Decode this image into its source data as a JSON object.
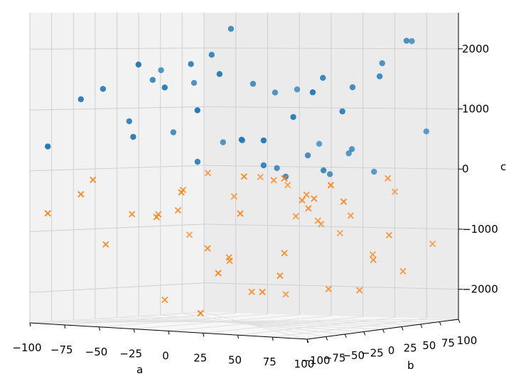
{
  "chart_data": {
    "type": "scatter",
    "projection": "3d",
    "title": "",
    "xlabel": "a",
    "ylabel": "b",
    "zlabel": "c",
    "xlim": [
      -100,
      100
    ],
    "ylim": [
      -100,
      100
    ],
    "zlim": [
      -2500,
      2600
    ],
    "x_ticks": [
      "−100",
      "−75",
      "−50",
      "−25",
      "0",
      "25",
      "50",
      "75",
      "100"
    ],
    "y_ticks": [
      "−100",
      "−75",
      "−50",
      "−25",
      "0",
      "25",
      "50",
      "75",
      "100"
    ],
    "z_ticks": [
      "−2000",
      "−1000",
      "0",
      "1000",
      "2000"
    ],
    "grid": true,
    "legend": "none",
    "series": [
      {
        "marker": "circle",
        "color": "#1f77b4",
        "x": [
          -98,
          -85,
          -80,
          -72,
          -66,
          -62,
          -58,
          -48,
          -45,
          -38,
          -30,
          -22,
          -18,
          -15,
          -10,
          -5,
          0,
          5,
          10,
          15,
          20,
          25,
          30,
          35,
          40,
          45,
          50,
          55,
          60,
          65,
          70,
          75,
          80,
          85,
          90,
          95,
          98,
          -90,
          -50,
          -20,
          10,
          40,
          60,
          85
        ],
        "y": [
          -80,
          -60,
          -40,
          -20,
          0,
          20,
          40,
          60,
          80,
          -70,
          -50,
          -30,
          -10,
          10,
          30,
          50,
          70,
          90,
          -80,
          -60,
          -40,
          -20,
          0,
          20,
          40,
          60,
          80,
          -75,
          -45,
          -15,
          15,
          45,
          75,
          -65,
          -35,
          5,
          35,
          55,
          -55,
          -25,
          25,
          65,
          -5,
          85
        ],
        "z": [
          400,
          1180,
          1350,
          820,
          1500,
          640,
          1450,
          480,
          510,
          1760,
          1390,
          1770,
          1920,
          2340,
          1450,
          1310,
          1360,
          480,
          1040,
          1620,
          570,
          160,
          -20,
          320,
          20,
          420,
          60,
          580,
          950,
          1570,
          1420,
          1800,
          2150,
          1350,
          1050,
          1600,
          2160,
          1650,
          580,
          190,
          100,
          350,
          100,
          720
        ]
      },
      {
        "marker": "x",
        "color": "#ff7f0e",
        "x": [
          -98,
          -85,
          -78,
          -70,
          -62,
          -55,
          -48,
          -40,
          -32,
          -25,
          -18,
          -10,
          -5,
          0,
          5,
          10,
          15,
          20,
          25,
          30,
          35,
          40,
          45,
          50,
          55,
          60,
          65,
          70,
          75,
          80,
          85,
          90,
          95,
          98,
          -90,
          -60,
          -30,
          0,
          30,
          60,
          90,
          -75,
          -45,
          -15,
          15,
          45,
          75,
          20,
          50,
          80
        ],
        "y": [
          -80,
          -60,
          -40,
          -20,
          0,
          20,
          40,
          60,
          80,
          -70,
          -50,
          -30,
          -10,
          10,
          30,
          50,
          70,
          90,
          -80,
          -60,
          -40,
          -20,
          0,
          20,
          40,
          60,
          80,
          -75,
          -45,
          -15,
          15,
          45,
          75,
          -65,
          -35,
          5,
          35,
          55,
          -55,
          -25,
          25,
          65,
          -5,
          85,
          -85,
          -35,
          15,
          65,
          -15,
          45
        ],
        "z": [
          -700,
          -380,
          -1200,
          -700,
          -700,
          -300,
          -20,
          -400,
          -80,
          -700,
          -300,
          -1200,
          -1400,
          -1900,
          -100,
          -680,
          -750,
          -950,
          -1550,
          -600,
          -1850,
          -1230,
          -300,
          -1800,
          -630,
          -1250,
          -250,
          -10,
          -330,
          -380,
          -1300,
          -1480,
          -1050,
          -100,
          -150,
          -2100,
          -1380,
          -1950,
          -10,
          -500,
          -10,
          -1060,
          -620,
          -200,
          -2200,
          -1580,
          -1790,
          -800,
          -380,
          -920
        ]
      }
    ]
  }
}
